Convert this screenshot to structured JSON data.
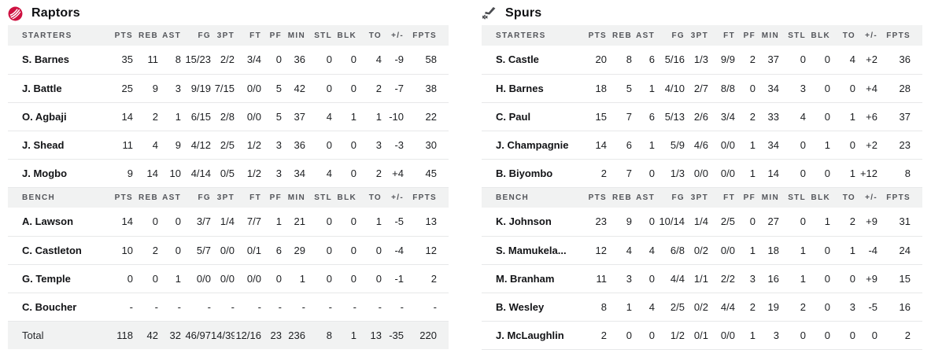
{
  "columns": {
    "starters_label": "STARTERS",
    "bench_label": "BENCH",
    "stats": [
      "PTS",
      "REB",
      "AST",
      "FG",
      "3PT",
      "FT",
      "PF",
      "MIN",
      "STL",
      "BLK",
      "TO",
      "+/-",
      "FPTS"
    ]
  },
  "colors": {
    "raptors_red": "#ce1141",
    "spurs_gray": "#4a4c50",
    "header_bg": "#f1f2f2",
    "row_border": "#e7e8e9"
  },
  "teams": [
    {
      "name": "Raptors",
      "logo": "raptors-logo",
      "starters": [
        {
          "name": "S. Barnes",
          "stats": [
            "35",
            "11",
            "8",
            "15/23",
            "2/2",
            "3/4",
            "0",
            "36",
            "0",
            "0",
            "4",
            "-9",
            "58"
          ]
        },
        {
          "name": "J. Battle",
          "stats": [
            "25",
            "9",
            "3",
            "9/19",
            "7/15",
            "0/0",
            "5",
            "42",
            "0",
            "0",
            "2",
            "-7",
            "38"
          ]
        },
        {
          "name": "O. Agbaji",
          "stats": [
            "14",
            "2",
            "1",
            "6/15",
            "2/8",
            "0/0",
            "5",
            "37",
            "4",
            "1",
            "1",
            "-10",
            "22"
          ]
        },
        {
          "name": "J. Shead",
          "stats": [
            "11",
            "4",
            "9",
            "4/12",
            "2/5",
            "1/2",
            "3",
            "36",
            "0",
            "0",
            "3",
            "-3",
            "30"
          ]
        },
        {
          "name": "J. Mogbo",
          "stats": [
            "9",
            "14",
            "10",
            "4/14",
            "0/5",
            "1/2",
            "3",
            "34",
            "4",
            "0",
            "2",
            "+4",
            "45"
          ]
        }
      ],
      "bench": [
        {
          "name": "A. Lawson",
          "stats": [
            "14",
            "0",
            "0",
            "3/7",
            "1/4",
            "7/7",
            "1",
            "21",
            "0",
            "0",
            "1",
            "-5",
            "13"
          ]
        },
        {
          "name": "C. Castleton",
          "stats": [
            "10",
            "2",
            "0",
            "5/7",
            "0/0",
            "0/1",
            "6",
            "29",
            "0",
            "0",
            "0",
            "-4",
            "12"
          ]
        },
        {
          "name": "G. Temple",
          "stats": [
            "0",
            "0",
            "1",
            "0/0",
            "0/0",
            "0/0",
            "0",
            "1",
            "0",
            "0",
            "0",
            "-1",
            "2"
          ]
        },
        {
          "name": "C. Boucher",
          "stats": [
            "-",
            "-",
            "-",
            "-",
            "-",
            "-",
            "-",
            "-",
            "-",
            "-",
            "-",
            "-",
            "-"
          ]
        }
      ],
      "total": {
        "name": "Total",
        "stats": [
          "118",
          "42",
          "32",
          "46/97",
          "14/39",
          "12/16",
          "23",
          "236",
          "8",
          "1",
          "13",
          "-35",
          "220"
        ]
      }
    },
    {
      "name": "Spurs",
      "logo": "spurs-logo",
      "starters": [
        {
          "name": "S. Castle",
          "stats": [
            "20",
            "8",
            "6",
            "5/16",
            "1/3",
            "9/9",
            "2",
            "37",
            "0",
            "0",
            "4",
            "+2",
            "36"
          ]
        },
        {
          "name": "H. Barnes",
          "stats": [
            "18",
            "5",
            "1",
            "4/10",
            "2/7",
            "8/8",
            "0",
            "34",
            "3",
            "0",
            "0",
            "+4",
            "28"
          ]
        },
        {
          "name": "C. Paul",
          "stats": [
            "15",
            "7",
            "6",
            "5/13",
            "2/6",
            "3/4",
            "2",
            "33",
            "4",
            "0",
            "1",
            "+6",
            "37"
          ]
        },
        {
          "name": "J. Champagnie",
          "stats": [
            "14",
            "6",
            "1",
            "5/9",
            "4/6",
            "0/0",
            "1",
            "34",
            "0",
            "1",
            "0",
            "+2",
            "23"
          ]
        },
        {
          "name": "B. Biyombo",
          "stats": [
            "2",
            "7",
            "0",
            "1/3",
            "0/0",
            "0/0",
            "1",
            "14",
            "0",
            "0",
            "1",
            "+12",
            "8"
          ]
        }
      ],
      "bench": [
        {
          "name": "K. Johnson",
          "stats": [
            "23",
            "9",
            "0",
            "10/14",
            "1/4",
            "2/5",
            "0",
            "27",
            "0",
            "1",
            "2",
            "+9",
            "31"
          ]
        },
        {
          "name": "S. Mamukela...",
          "stats": [
            "12",
            "4",
            "4",
            "6/8",
            "0/2",
            "0/0",
            "1",
            "18",
            "1",
            "0",
            "1",
            "-4",
            "24"
          ]
        },
        {
          "name": "M. Branham",
          "stats": [
            "11",
            "3",
            "0",
            "4/4",
            "1/1",
            "2/2",
            "3",
            "16",
            "1",
            "0",
            "0",
            "+9",
            "15"
          ]
        },
        {
          "name": "B. Wesley",
          "stats": [
            "8",
            "1",
            "4",
            "2/5",
            "0/2",
            "4/4",
            "2",
            "19",
            "2",
            "0",
            "3",
            "-5",
            "16"
          ]
        },
        {
          "name": "J. McLaughlin",
          "stats": [
            "2",
            "0",
            "0",
            "1/2",
            "0/1",
            "0/0",
            "1",
            "3",
            "0",
            "0",
            "0",
            "0",
            "2"
          ]
        }
      ]
    }
  ]
}
